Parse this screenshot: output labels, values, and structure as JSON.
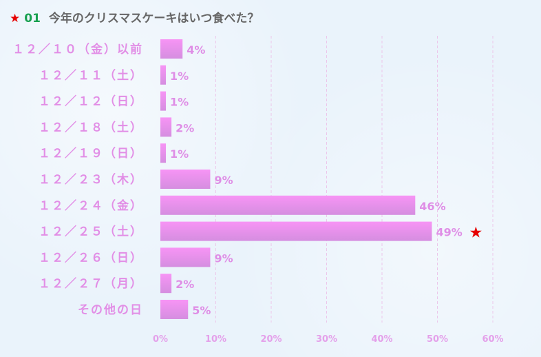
{
  "header": {
    "star": "★",
    "number": "01",
    "title": "今年のクリスマスケーキはいつ食べた？"
  },
  "chart_data": {
    "type": "bar",
    "orientation": "horizontal",
    "title": "今年のクリスマスケーキはいつ食べた？",
    "categories": [
      "１２／１０（金）以前",
      "１２／１１（土）",
      "１２／１２（日）",
      "１２／１８（土）",
      "１２／１９（日）",
      "１２／２３（木）",
      "１２／２４（金）",
      "１２／２５（土）",
      "１２／２６（日）",
      "１２／２７（月）",
      "その他の日"
    ],
    "values": [
      4,
      1,
      1,
      2,
      1,
      9,
      46,
      49,
      9,
      2,
      5
    ],
    "value_labels": [
      "4%",
      "1%",
      "1%",
      "2%",
      "1%",
      "9%",
      "46%",
      "49%",
      "9%",
      "2%",
      "5%"
    ],
    "highlight_index": 7,
    "highlight_mark": "★",
    "xlim": [
      0,
      60
    ],
    "xticks": [
      "0%",
      "10%",
      "20%",
      "30%",
      "40%",
      "50%",
      "60%"
    ],
    "grid": true,
    "colors": {
      "bar_top": "#f794f5",
      "bar_bottom": "#d58ee0",
      "label": "#e28ee6",
      "star": "#e60000"
    }
  }
}
